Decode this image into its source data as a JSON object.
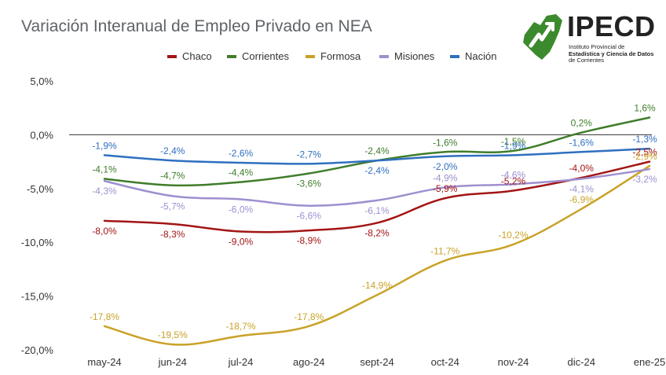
{
  "title": "Variación Interanual de Empleo Privado en NEA",
  "logo": {
    "name": "IPECD",
    "line1": "Instituto Provincial de",
    "line2": "Estadística y Ciencia de Datos",
    "line3": "de Corrientes"
  },
  "chart_data": {
    "type": "line",
    "title": "Variación Interanual de Empleo Privado en NEA",
    "categories": [
      "may-24",
      "jun-24",
      "jul-24",
      "ago-24",
      "sept-24",
      "oct-24",
      "nov-24",
      "dic-24",
      "ene-25"
    ],
    "ylim": [
      -20,
      5
    ],
    "yticks": [
      5,
      0,
      -5,
      -10,
      -15,
      -20
    ],
    "ytick_labels": [
      "5,0%",
      "0,0%",
      "-5,0%",
      "-10,0%",
      "-15,0%",
      "-20,0%"
    ],
    "legend_position": "top",
    "grid": false,
    "series": [
      {
        "name": "Chaco",
        "color": "#a31515",
        "values": [
          -8.0,
          -8.3,
          -9.0,
          -8.9,
          -8.2,
          -5.9,
          -5.2,
          -4.0,
          -2.5
        ],
        "labels": [
          "-8,0%",
          "-8,3%",
          "-9,0%",
          "-8,9%",
          "-8,2%",
          "-5,9%",
          "-5,2%",
          "-4,0%",
          "-2,5%"
        ]
      },
      {
        "name": "Corrientes",
        "color": "#3f7d2a",
        "values": [
          -4.1,
          -4.7,
          -4.4,
          -3.6,
          -2.4,
          -1.6,
          -1.5,
          0.2,
          1.6
        ],
        "labels": [
          "-4,1%",
          "-4,7%",
          "-4,4%",
          "-3,6%",
          "-2,4%",
          "-1,6%",
          "-1,5%",
          "0,2%",
          "1,6%"
        ]
      },
      {
        "name": "Formosa",
        "color": "#c9a227",
        "values": [
          -17.8,
          -19.5,
          -18.7,
          -17.8,
          -14.9,
          -11.7,
          -10.2,
          -6.9,
          -2.9
        ],
        "labels": [
          "-17,8%",
          "-19,5%",
          "-18,7%",
          "-17,8%",
          "-14,9%",
          "-11,7%",
          "-10,2%",
          "-6,9%",
          "-2,9%"
        ]
      },
      {
        "name": "Misiones",
        "color": "#9e8fcf",
        "values": [
          -4.3,
          -5.7,
          -6.0,
          -6.6,
          -6.1,
          -4.9,
          -4.6,
          -4.1,
          -3.2
        ],
        "labels": [
          "-4,3%",
          "-5,7%",
          "-6,0%",
          "-6,6%",
          "-6,1%",
          "-4,9%",
          "-4,6%",
          "-4,1%",
          "-3,2%"
        ]
      },
      {
        "name": "Nación",
        "color": "#2f6fc0",
        "values": [
          -1.9,
          -2.4,
          -2.6,
          -2.7,
          -2.4,
          -2.0,
          -1.9,
          -1.6,
          -1.3
        ],
        "labels": [
          "-1,9%",
          "-2,4%",
          "-2,6%",
          "-2,7%",
          "-2,4%",
          "-2,0%",
          "-1,9%",
          "-1,6%",
          "-1,3%"
        ]
      }
    ]
  }
}
